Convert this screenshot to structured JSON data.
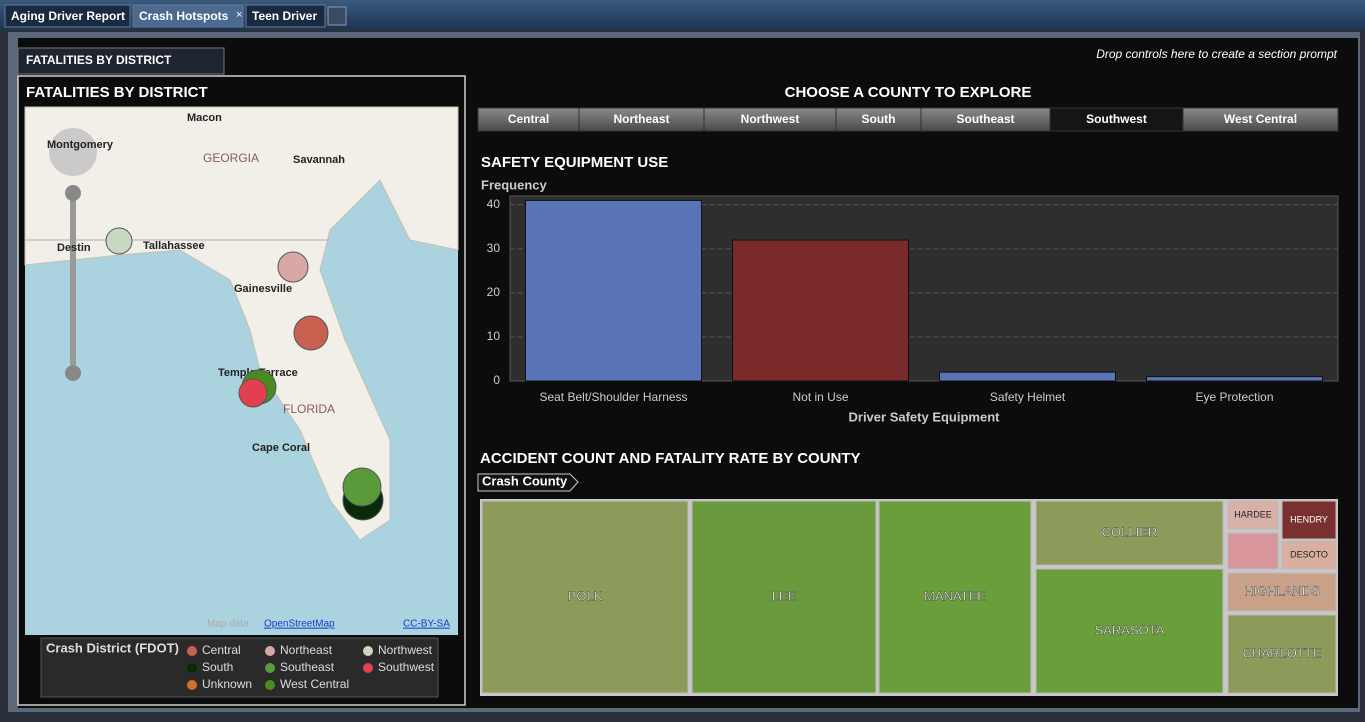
{
  "tabs": [
    "Aging Driver Report",
    "Crash Hotspots",
    "Teen Driver"
  ],
  "section_tab": "FATALITIES BY DISTRICT",
  "section_prompt": "Drop controls here to create a section prompt",
  "map": {
    "title": "FATALITIES BY DISTRICT",
    "places": [
      "Macon",
      "GEORGIA",
      "Savannah",
      "Montgomery",
      "Destin",
      "Tallahassee",
      "Gainesville",
      "Temple Terrace",
      "FLORIDA",
      "Cape Coral"
    ],
    "attribution": [
      "Map data",
      "OpenStreetMap",
      "CC-BY-SA"
    ],
    "legend": {
      "title": "Crash District (FDOT)",
      "items": [
        {
          "name": "Central",
          "color": "#c86050"
        },
        {
          "name": "Northeast",
          "color": "#d8a8a8"
        },
        {
          "name": "Northwest",
          "color": "#c8d8c0"
        },
        {
          "name": "South",
          "color": "#0a2a0a"
        },
        {
          "name": "Southeast",
          "color": "#5a9a3a"
        },
        {
          "name": "Southwest",
          "color": "#e04050"
        },
        {
          "name": "Unknown",
          "color": "#d07030"
        },
        {
          "name": "West Central",
          "color": "#4a8a20"
        }
      ]
    }
  },
  "county_selector": {
    "title": "CHOOSE A COUNTY TO EXPLORE",
    "options": [
      "Central",
      "Northeast",
      "Northwest",
      "South",
      "Southeast",
      "Southwest",
      "West Central"
    ],
    "selected_index": 5
  },
  "chart_data": {
    "type": "bar",
    "title": "SAFETY EQUIPMENT USE",
    "y_label": "Frequency",
    "x_label": "Driver Safety Equipment",
    "categories": [
      "Seat Belt/Shoulder Harness",
      "Not in Use",
      "Safety Helmet",
      "Eye Protection"
    ],
    "values": [
      41,
      32,
      2,
      1
    ],
    "colors": [
      "#5a74b8",
      "#7a2a2a",
      "#5a74b8",
      "#5a74b8"
    ],
    "ylim": [
      0,
      42
    ],
    "yticks": [
      0,
      10,
      20,
      30,
      40
    ],
    "grid": true
  },
  "treemap": {
    "title": "ACCIDENT COUNT AND FATALITY RATE BY COUNTY",
    "breadcrumb": "Crash County",
    "cells": [
      {
        "label": "POLK",
        "color": "#8c9a5a"
      },
      {
        "label": "LEE",
        "color": "#6a9a3c"
      },
      {
        "label": "MANATEE",
        "color": "#6a9e3a"
      },
      {
        "label": "COLLIER",
        "color": "#8c9a5a"
      },
      {
        "label": "SARASOTA",
        "color": "#6a9e3a"
      },
      {
        "label": "HARDEE",
        "color": "#d9b0a8"
      },
      {
        "label": "HENDRY",
        "color": "#7a3030"
      },
      {
        "label": null,
        "color": "#d8969c"
      },
      {
        "label": "DESOTO",
        "color": "#d9b0a0"
      },
      {
        "label": "HIGHLANDS",
        "color": "#c9a088"
      },
      {
        "label": "CHARLOTTE",
        "color": "#8c9a5a"
      }
    ]
  }
}
